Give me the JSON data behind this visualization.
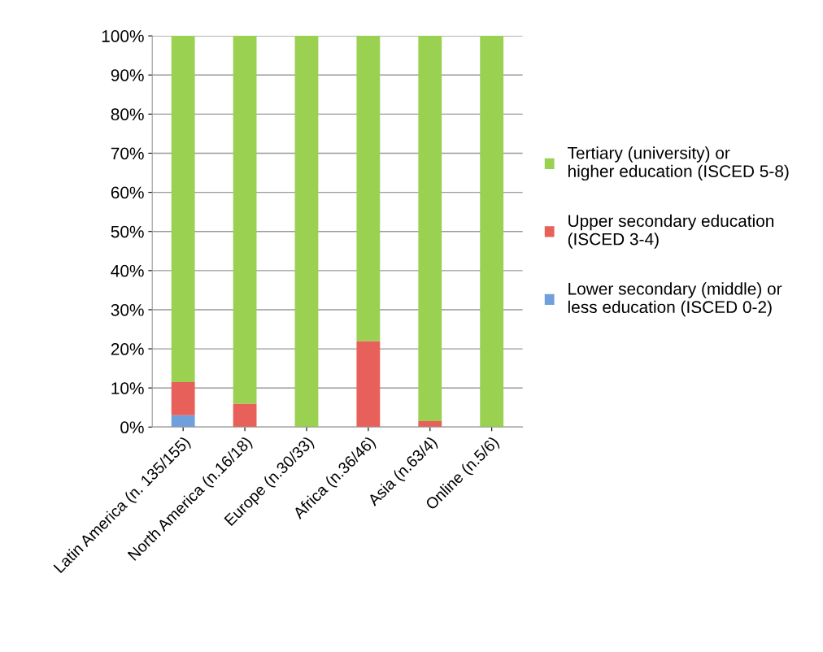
{
  "chart_data": {
    "type": "bar",
    "stacked": true,
    "categories": [
      "Latin America (n. 135/155)",
      "North America (n.16/18)",
      "Europe (n.30/33)",
      "Africa (n.36/46)",
      "Asia (n.63/4)",
      "Online (n.5/6)"
    ],
    "series": [
      {
        "name": "Lower secondary (middle) or less education (ISCED 0-2)",
        "color": "#6fa0dc",
        "values": [
          3,
          0,
          0,
          0,
          0,
          0
        ]
      },
      {
        "name": "Upper secondary education (ISCED 3-4)",
        "color": "#e8605a",
        "values": [
          8.5,
          6,
          0,
          22,
          1.5,
          0
        ]
      },
      {
        "name": "Tertiary (university) or higher education (ISCED 5-8)",
        "color": "#9bd150",
        "values": [
          88.5,
          94,
          100,
          78,
          98.5,
          100
        ]
      }
    ],
    "ylim": [
      0,
      100
    ],
    "yticks": [
      {
        "value": 0,
        "label": "0%"
      },
      {
        "value": 10,
        "label": "10%"
      },
      {
        "value": 20,
        "label": "20%"
      },
      {
        "value": 30,
        "label": "30%"
      },
      {
        "value": 40,
        "label": "40%"
      },
      {
        "value": 50,
        "label": "50%"
      },
      {
        "value": 60,
        "label": "60%"
      },
      {
        "value": 70,
        "label": "70%"
      },
      {
        "value": 80,
        "label": "80%"
      },
      {
        "value": 90,
        "label": "90%"
      },
      {
        "value": 100,
        "label": "100%"
      }
    ],
    "grid": "y",
    "legend": "right"
  }
}
